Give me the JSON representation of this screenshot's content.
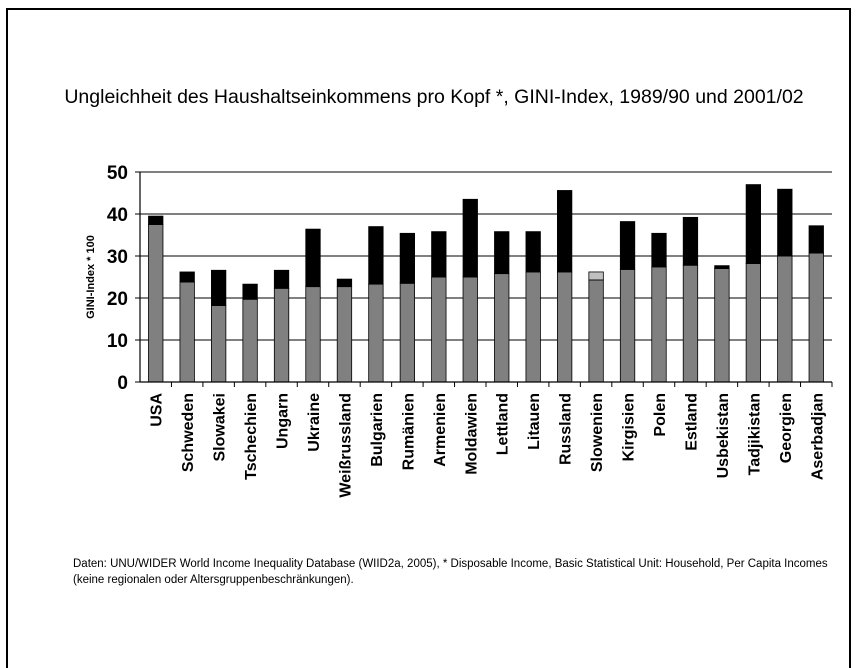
{
  "colors": {
    "base": "#808080",
    "increase": "#000000",
    "decrease": "#c0c0c0",
    "grid": "#000000"
  },
  "chart_data": {
    "type": "bar",
    "stacked": true,
    "title": "Ungleichheit des Haushaltseinkommens pro Kopf *, GINI-Index, 1989/90 und 2001/02",
    "xlabel": "",
    "ylabel": "GINI-Index * 100",
    "ylim": [
      0,
      50
    ],
    "yticks": [
      "0",
      "10",
      "20",
      "30",
      "40",
      "50"
    ],
    "grid": true,
    "legend": "none",
    "categories": [
      "USA",
      "Schweden",
      "Slowakei",
      "Tschechien",
      "Ungarn",
      "Ukraine",
      "Weißrussland",
      "Bulgarien",
      "Rumänien",
      "Armenien",
      "Moldawien",
      "Lettland",
      "Litauen",
      "Russland",
      "Slowenien",
      "Kirgisien",
      "Polen",
      "Estland",
      "Usbekistan",
      "Tadjikistan",
      "Georgien",
      "Aserbadjan"
    ],
    "series": [
      {
        "values": [
          37.5,
          23.8,
          18.2,
          19.7,
          22.3,
          22.7,
          22.7,
          23.3,
          23.5,
          25.0,
          25.0,
          25.8,
          26.2,
          26.2,
          24.3,
          26.8,
          27.4,
          27.8,
          27.0,
          28.2,
          30.0,
          30.7
        ]
      },
      {
        "values": [
          2.0,
          2.4,
          8.4,
          3.6,
          4.3,
          13.7,
          1.8,
          13.7,
          11.9,
          10.8,
          18.5,
          10.0,
          9.6,
          19.4,
          0,
          11.4,
          8.0,
          11.4,
          0.7,
          18.8,
          15.9,
          6.5
        ]
      },
      {
        "values": [
          0,
          0,
          0,
          0,
          0,
          0,
          0,
          0,
          0,
          0,
          0,
          0,
          0,
          0,
          1.9,
          0,
          0,
          0,
          0,
          0,
          0,
          0
        ]
      }
    ]
  },
  "source_note": "Daten: UNU/WIDER World Income Inequality Database (WIID2a, 2005), * Disposable Income, Basic Statistical Unit: Household, Per Capita Incomes (keine regionalen oder Altersgruppenbeschränkungen)."
}
